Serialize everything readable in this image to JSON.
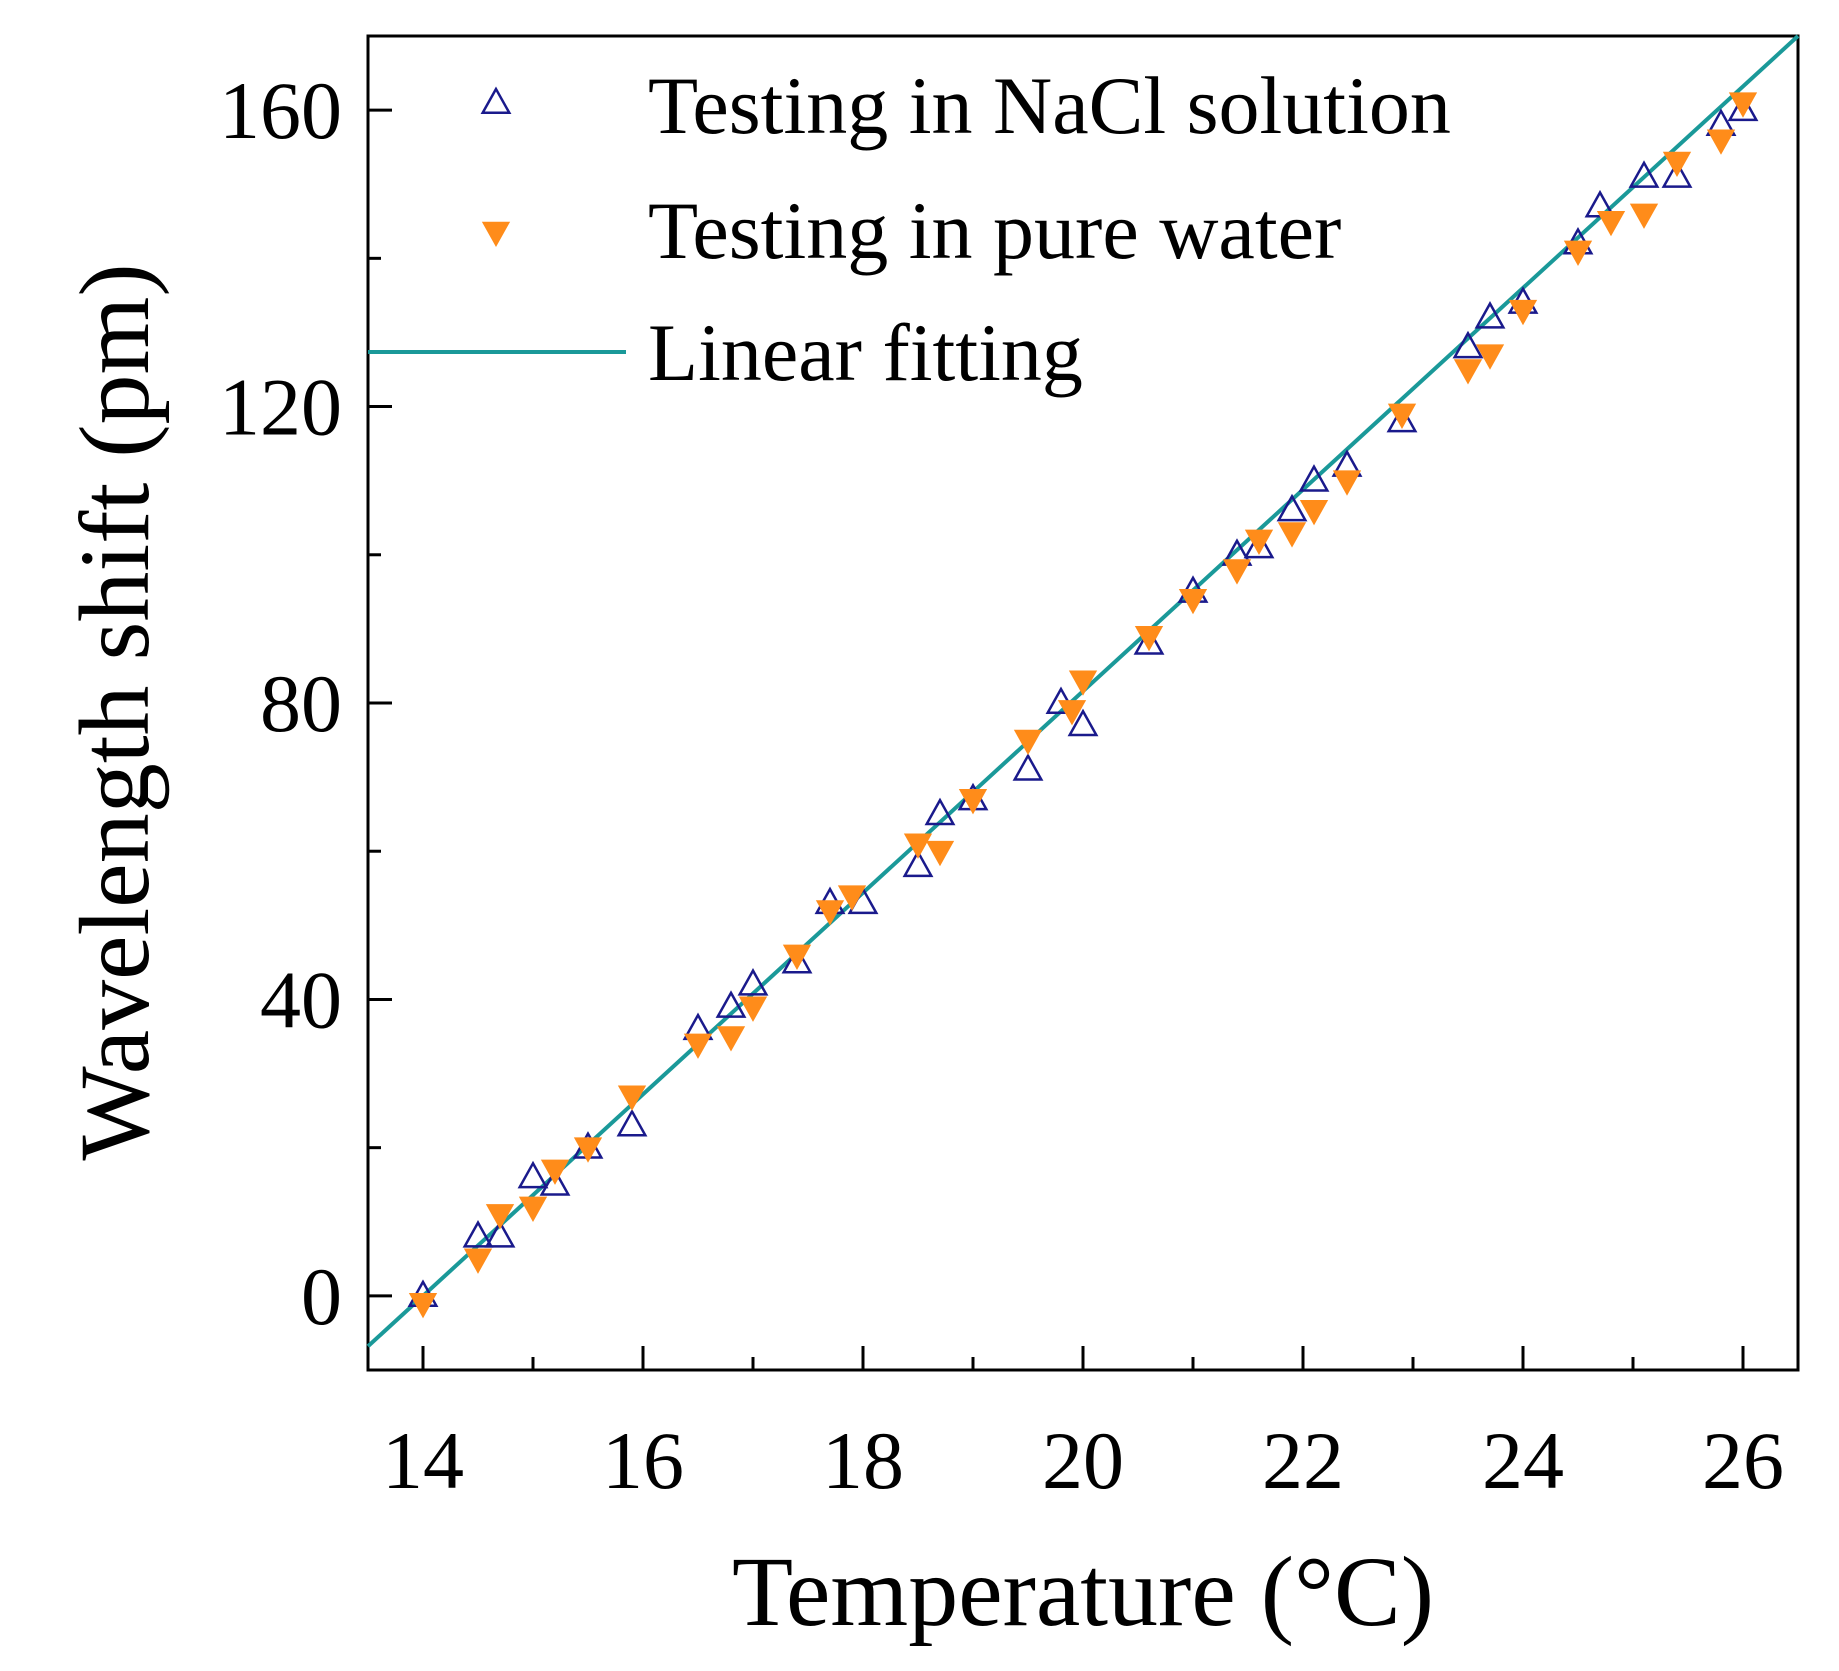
{
  "chart_data": {
    "type": "scatter",
    "title": "",
    "xlabel": "Temperature (°C)",
    "ylabel": "Wavelength shift (pm)",
    "xlim": [
      13.5,
      26.5
    ],
    "ylim": [
      -10,
      170
    ],
    "xticks": [
      14,
      16,
      18,
      20,
      22,
      24,
      26
    ],
    "yticks": [
      0,
      40,
      80,
      120,
      160
    ],
    "xminor": [
      15,
      17,
      19,
      21,
      23,
      25
    ],
    "yminor": [
      20,
      60,
      100,
      140
    ],
    "grid": false,
    "legend_position": "top-left",
    "series": [
      {
        "name": "Testing in NaCl solution",
        "marker": "open-triangle-up",
        "color": "#1a1a8c",
        "x": [
          14.0,
          14.5,
          14.7,
          15.0,
          15.2,
          15.5,
          15.9,
          16.5,
          16.8,
          17.0,
          17.4,
          17.7,
          18.0,
          18.5,
          18.7,
          19.0,
          19.5,
          19.8,
          20.0,
          20.6,
          21.0,
          21.4,
          21.6,
          21.9,
          22.1,
          22.4,
          22.9,
          23.5,
          23.7,
          24.0,
          24.5,
          24.7,
          25.1,
          25.4,
          25.8,
          26.0
        ],
        "y": [
          0,
          8,
          8,
          16,
          15,
          20,
          23,
          36,
          39,
          42,
          45,
          53,
          53,
          58,
          65,
          67,
          71,
          80,
          77,
          88,
          95,
          100,
          101,
          106,
          110,
          112,
          118,
          128,
          132,
          134,
          142,
          147,
          151,
          151,
          158,
          160
        ]
      },
      {
        "name": "Testing in pure water",
        "marker": "filled-triangle-down",
        "color": "#ff8c1a",
        "x": [
          14.0,
          14.5,
          14.7,
          15.0,
          15.2,
          15.5,
          15.9,
          16.5,
          16.8,
          17.0,
          17.4,
          17.7,
          17.9,
          18.5,
          18.7,
          19.0,
          19.5,
          19.9,
          20.0,
          20.6,
          21.0,
          21.4,
          21.6,
          21.9,
          22.1,
          22.4,
          22.9,
          23.5,
          23.7,
          24.0,
          24.5,
          24.8,
          25.1,
          25.4,
          25.8,
          26.0
        ],
        "y": [
          -1,
          5,
          11,
          12,
          17,
          20,
          27,
          34,
          35,
          39,
          46,
          52,
          54,
          61,
          60,
          67,
          75,
          79,
          83,
          89,
          94,
          98,
          102,
          103,
          106,
          110,
          119,
          125,
          127,
          133,
          141,
          145,
          146,
          153,
          156,
          161
        ]
      },
      {
        "name": "Linear fitting",
        "marker": "line",
        "color": "#1a9999",
        "slope": 13.6,
        "intercept": -190.4
      }
    ]
  }
}
